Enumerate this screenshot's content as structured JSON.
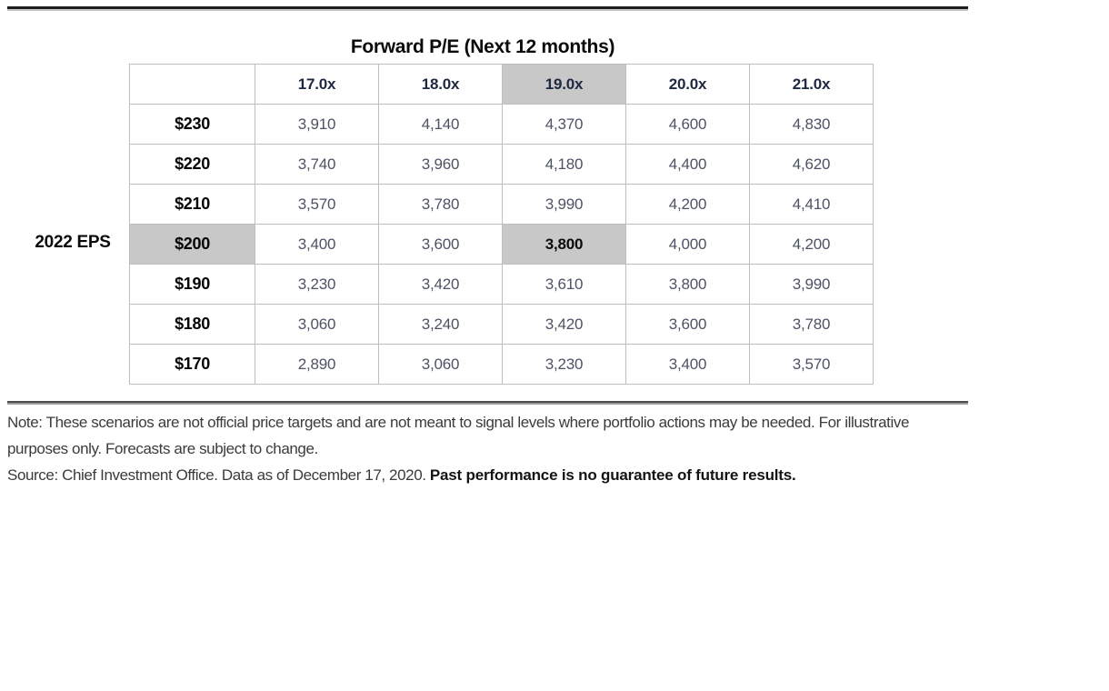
{
  "title": "Forward P/E (Next 12 months)",
  "table": {
    "axis_label": "2022 EPS",
    "col_headers": [
      "17.0x",
      "18.0x",
      "19.0x",
      "20.0x",
      "21.0x"
    ],
    "highlighted_col": "19.0x",
    "highlighted_row": "$200",
    "highlighted_cell_value": "3,800",
    "rows": [
      {
        "eps": "$230",
        "values": [
          "3,910",
          "4,140",
          "4,370",
          "4,600",
          "4,830"
        ]
      },
      {
        "eps": "$220",
        "values": [
          "3,740",
          "3,960",
          "4,180",
          "4,400",
          "4,620"
        ]
      },
      {
        "eps": "$210",
        "values": [
          "3,570",
          "3,780",
          "3,990",
          "4,200",
          "4,410"
        ]
      },
      {
        "eps": "$200",
        "values": [
          "3,400",
          "3,600",
          "3,800",
          "4,000",
          "4,200"
        ]
      },
      {
        "eps": "$190",
        "values": [
          "3,230",
          "3,420",
          "3,610",
          "3,800",
          "3,990"
        ]
      },
      {
        "eps": "$180",
        "values": [
          "3,060",
          "3,240",
          "3,420",
          "3,600",
          "3,780"
        ]
      },
      {
        "eps": "$170",
        "values": [
          "2,890",
          "3,060",
          "3,230",
          "3,400",
          "3,570"
        ]
      }
    ]
  },
  "footnote": {
    "note": "Note: These scenarios are not official price targets and are not meant to signal levels where portfolio actions may be needed. For illustrative purposes only. Forecasts are subject to change.",
    "source_prefix": "Source: Chief Investment Office. Data as of December 17, 2020. ",
    "source_bold": "Past performance is no guarantee of future results."
  },
  "colors": {
    "highlight": "#c8c8c8",
    "header_text": "#1e2840",
    "value_text": "#4d5364",
    "top_rule": "#1c1c1c"
  }
}
